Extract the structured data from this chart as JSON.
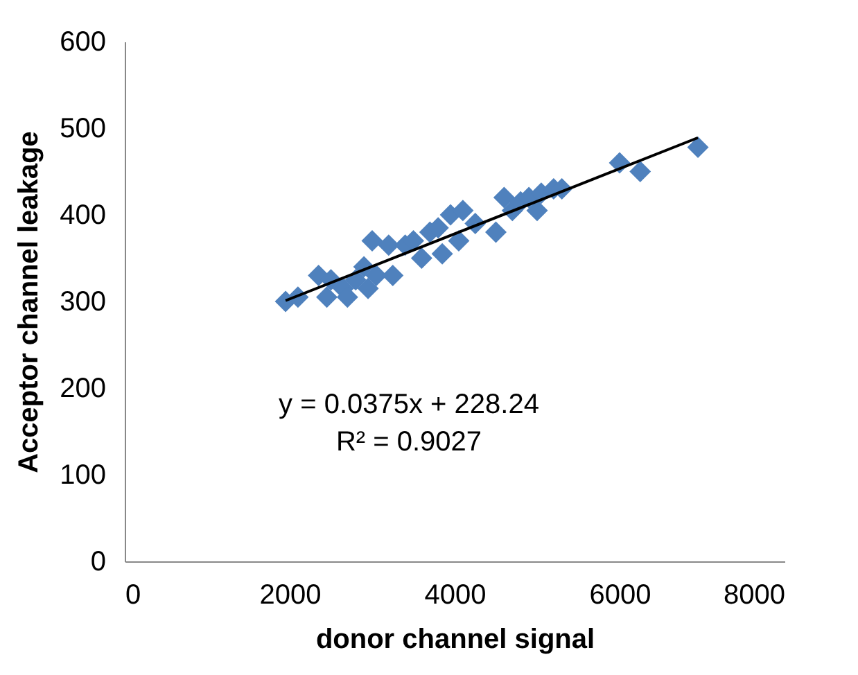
{
  "chart_data": {
    "type": "scatter",
    "xlabel": "donor channel signal",
    "ylabel": "Acceptor channel leakage",
    "xlim": [
      0,
      8000
    ],
    "xticks": [
      0,
      2000,
      4000,
      6000,
      8000
    ],
    "ylim": [
      0,
      600
    ],
    "yticks": [
      0,
      100,
      200,
      300,
      400,
      500,
      600
    ],
    "grid": false,
    "legend": false,
    "annotations": [
      "y = 0.0375x + 228.24",
      "R² = 0.9027"
    ],
    "series": [
      {
        "type": "scatter",
        "marker": "diamond",
        "color": "#4f81bd",
        "x": [
          1950,
          2100,
          2350,
          2450,
          2500,
          2650,
          2700,
          2800,
          2900,
          2950,
          3000,
          3050,
          3200,
          3250,
          3400,
          3500,
          3600,
          3700,
          3800,
          3850,
          3950,
          4050,
          4100,
          4250,
          4500,
          4600,
          4700,
          4800,
          4900,
          5000,
          5050,
          5200,
          5300,
          6000,
          6250,
          6950
        ],
        "values": [
          300,
          305,
          330,
          305,
          325,
          315,
          305,
          325,
          340,
          315,
          370,
          330,
          365,
          330,
          365,
          370,
          350,
          380,
          385,
          355,
          400,
          370,
          405,
          390,
          380,
          420,
          405,
          415,
          420,
          405,
          425,
          430,
          430,
          460,
          450,
          478
        ]
      },
      {
        "type": "line",
        "marker": "none",
        "color": "#000000",
        "x": [
          1950,
          6950
        ],
        "values": [
          301,
          489
        ]
      }
    ]
  }
}
